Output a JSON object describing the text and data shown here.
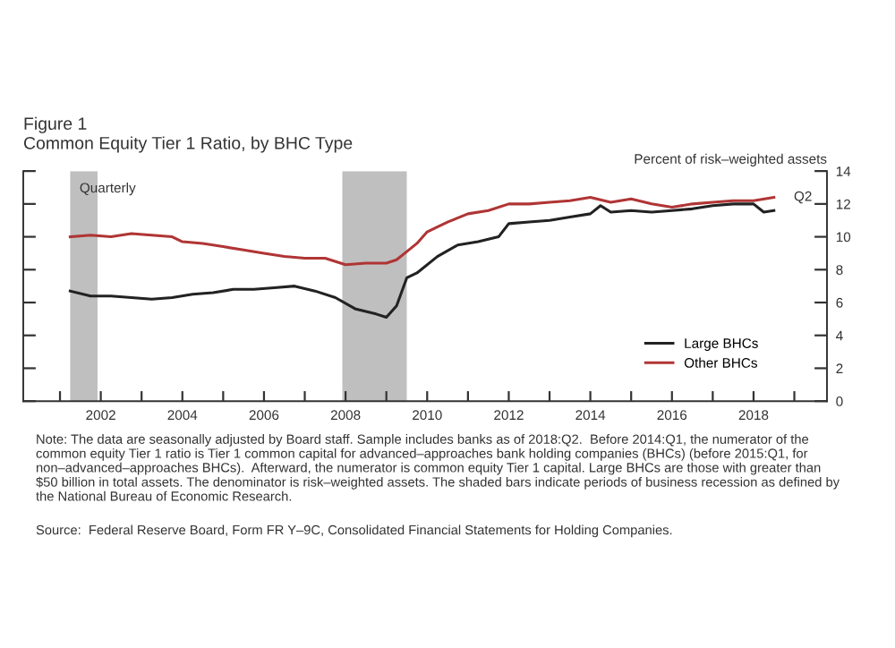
{
  "chart_data": {
    "type": "line",
    "title": "Figure 1",
    "subtitle": "Common Equity Tier 1 Ratio, by BHC Type",
    "ylabel": "Percent of risk–weighted assets",
    "xlim": [
      2000.1,
      2019.8
    ],
    "ylim": [
      0,
      14
    ],
    "yticks": [
      0,
      2,
      4,
      6,
      8,
      10,
      12,
      14
    ],
    "xticks": [
      {
        "value": 2001,
        "label": null
      },
      {
        "value": 2002,
        "label": "2002"
      },
      {
        "value": 2003,
        "label": null
      },
      {
        "value": 2004,
        "label": "2004"
      },
      {
        "value": 2005,
        "label": null
      },
      {
        "value": 2006,
        "label": "2006"
      },
      {
        "value": 2007,
        "label": null
      },
      {
        "value": 2008,
        "label": "2008"
      },
      {
        "value": 2009,
        "label": null
      },
      {
        "value": 2010,
        "label": "2010"
      },
      {
        "value": 2011,
        "label": null
      },
      {
        "value": 2012,
        "label": "2012"
      },
      {
        "value": 2013,
        "label": null
      },
      {
        "value": 2014,
        "label": "2014"
      },
      {
        "value": 2015,
        "label": null
      },
      {
        "value": 2016,
        "label": "2016"
      },
      {
        "value": 2017,
        "label": null
      },
      {
        "value": 2018,
        "label": "2018"
      },
      {
        "value": 2019,
        "label": null
      }
    ],
    "grid": false,
    "legend": "bottom right",
    "bands": [
      {
        "axis": "x",
        "from": 2001.25,
        "to": 2001.92,
        "color": "#bfbfbf"
      },
      {
        "axis": "x",
        "from": 2007.92,
        "to": 2009.5,
        "color": "#bfbfbf"
      }
    ],
    "series": [
      {
        "name": "Large BHCs",
        "color": "#222222",
        "x": [
          2001.25,
          2001.75,
          2002.25,
          2002.75,
          2003.25,
          2003.75,
          2004.25,
          2004.75,
          2005.25,
          2005.75,
          2006.25,
          2006.75,
          2007.25,
          2007.75,
          2008.25,
          2008.75,
          2009.0,
          2009.25,
          2009.5,
          2009.75,
          2010.25,
          2010.75,
          2011.25,
          2011.75,
          2012.0,
          2012.5,
          2013.0,
          2013.5,
          2014.0,
          2014.25,
          2014.5,
          2015.0,
          2015.5,
          2016.0,
          2016.5,
          2017.0,
          2017.5,
          2018.0,
          2018.25,
          2018.5
        ],
        "values": [
          6.7,
          6.4,
          6.4,
          6.3,
          6.2,
          6.3,
          6.5,
          6.6,
          6.8,
          6.8,
          6.9,
          7.0,
          6.7,
          6.3,
          5.6,
          5.3,
          5.1,
          5.8,
          7.5,
          7.8,
          8.8,
          9.5,
          9.7,
          10.0,
          10.8,
          10.9,
          11.0,
          11.2,
          11.4,
          11.9,
          11.5,
          11.6,
          11.5,
          11.6,
          11.7,
          11.9,
          12.0,
          12.0,
          11.5,
          11.6
        ]
      },
      {
        "name": "Other BHCs",
        "color": "#b03535",
        "x": [
          2001.25,
          2001.75,
          2002.25,
          2002.75,
          2003.25,
          2003.75,
          2004.0,
          2004.5,
          2005.0,
          2005.5,
          2006.0,
          2006.5,
          2007.0,
          2007.5,
          2008.0,
          2008.5,
          2009.0,
          2009.25,
          2009.5,
          2009.75,
          2010.0,
          2010.5,
          2011.0,
          2011.5,
          2012.0,
          2012.5,
          2013.0,
          2013.5,
          2014.0,
          2014.5,
          2015.0,
          2015.5,
          2016.0,
          2016.5,
          2017.0,
          2017.5,
          2018.0,
          2018.5
        ],
        "values": [
          10.0,
          10.1,
          10.0,
          10.2,
          10.1,
          10.0,
          9.7,
          9.6,
          9.4,
          9.2,
          9.0,
          8.8,
          8.7,
          8.7,
          8.3,
          8.4,
          8.4,
          8.6,
          9.1,
          9.6,
          10.3,
          10.9,
          11.4,
          11.6,
          12.0,
          12.0,
          12.1,
          12.2,
          12.4,
          12.1,
          12.3,
          12.0,
          11.8,
          12.0,
          12.1,
          12.2,
          12.2,
          12.4
        ]
      }
    ],
    "annotations": [
      "Quarterly",
      {
        "text": "Q2",
        "x": 2018.5,
        "y": 12.4
      },
      "Note: The data are seasonally adjusted by Board staff. Sample includes banks as of 2018:Q2.  Before 2014:Q1, the numerator of the common equity Tier 1 ratio is Tier 1 common capital for advanced–approaches bank holding companies (BHCs) (before 2015:Q1, for non–advanced–approaches BHCs).  Afterward, the numerator is common equity Tier 1 capital. Large BHCs are those with greater than $50 billion in total assets. The denominator is risk–weighted assets. The shaded bars indicate periods of business recession as defined by the National Bureau of Economic Research.",
      "Source:  Federal Reserve Board, Form FR Y–9C, Consolidated Financial Statements for Holding Companies."
    ]
  }
}
